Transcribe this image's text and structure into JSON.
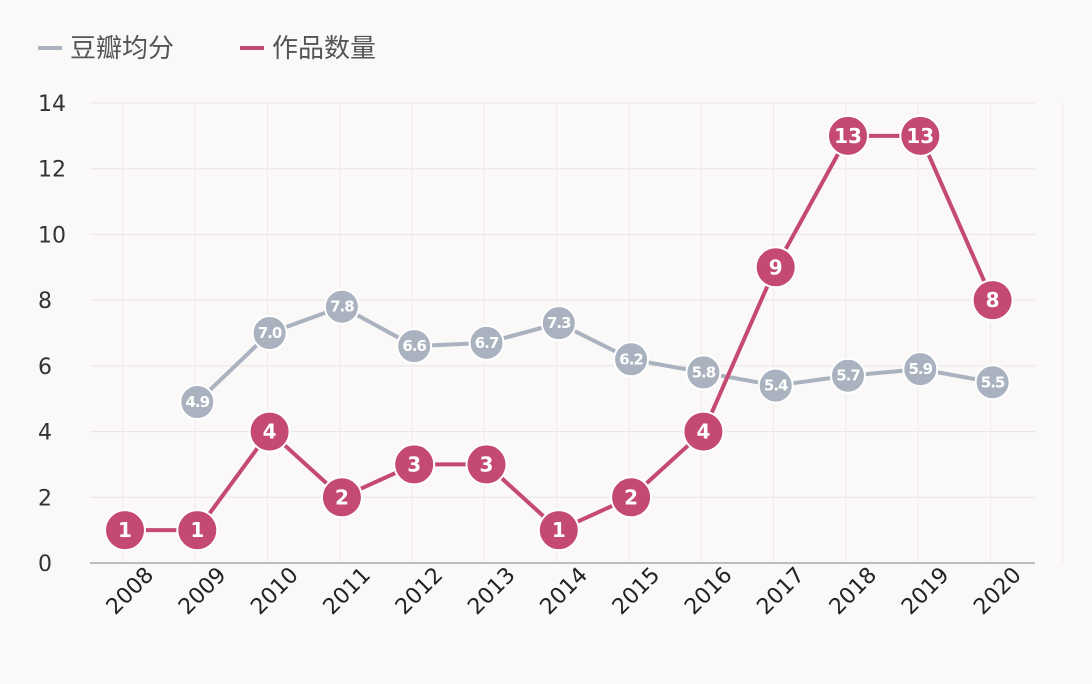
{
  "chart_data": {
    "type": "line",
    "categories": [
      "2008",
      "2009",
      "2010",
      "2011",
      "2012",
      "2013",
      "2014",
      "2015",
      "2016",
      "2017",
      "2018",
      "2019",
      "2020"
    ],
    "series": [
      {
        "name": "豆瓣均分",
        "color": "#a9b2be",
        "values": [
          null,
          4.9,
          7.0,
          7.8,
          6.6,
          6.7,
          7.3,
          6.2,
          5.8,
          5.4,
          5.7,
          5.9,
          5.5
        ],
        "labels": [
          "",
          "4.9",
          "7.0",
          "7.8",
          "6.6",
          "6.7",
          "7.3",
          "6.2",
          "5.8",
          "5.4",
          "5.7",
          "5.9",
          "5.5"
        ]
      },
      {
        "name": "作品数量",
        "color": "#c44a72",
        "values": [
          1,
          1,
          4,
          2,
          3,
          3,
          1,
          2,
          4,
          9,
          13,
          13,
          8
        ],
        "labels": [
          "1",
          "1",
          "4",
          "2",
          "3",
          "3",
          "1",
          "2",
          "4",
          "9",
          "13",
          "13",
          "8"
        ]
      }
    ],
    "ylim": [
      0,
      14
    ],
    "yticks": [
      "0",
      "2",
      "4",
      "6",
      "8",
      "10",
      "12",
      "14"
    ],
    "grid": true,
    "legend": "top-left"
  }
}
